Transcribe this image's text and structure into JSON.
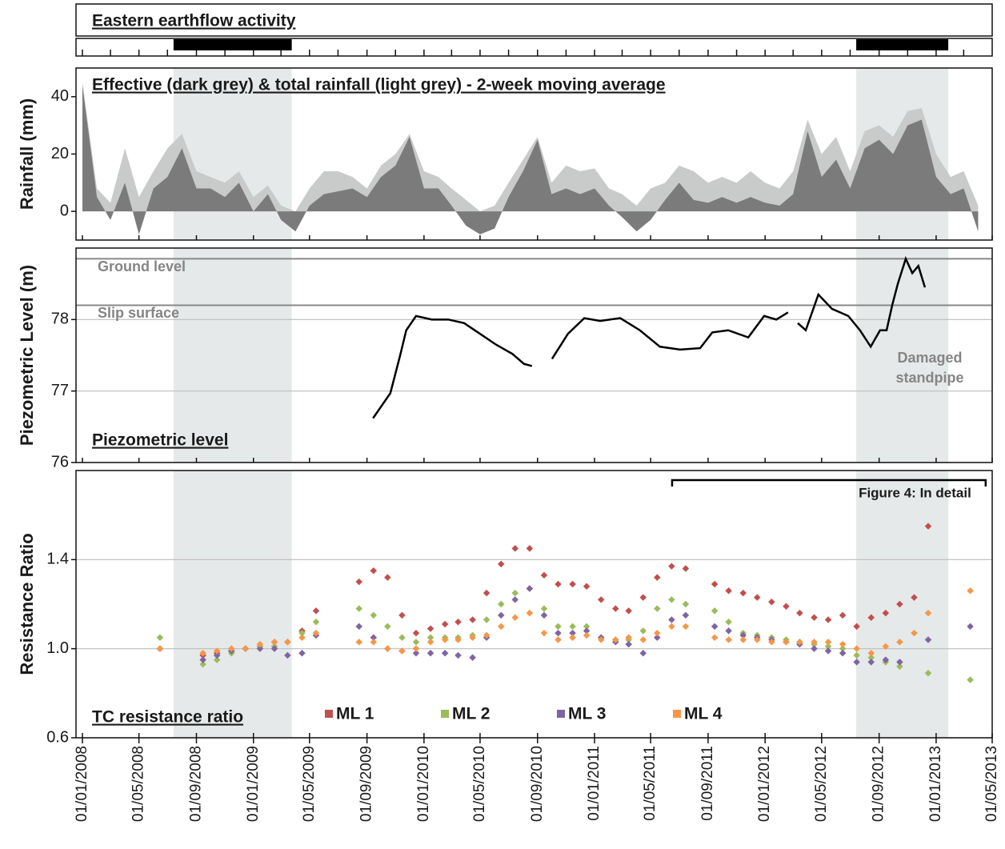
{
  "chart_data": [
    {
      "type": "timeline",
      "title": "Eastern earthflow activity",
      "periods": [
        {
          "start": "14/07/2008",
          "end": "24/03/2009"
        },
        {
          "start": "14/07/2012",
          "end": "27/01/2013"
        }
      ]
    },
    {
      "type": "area",
      "title": "Effective (dark grey) & total rainfall (light grey) - 2-week moving average",
      "y_label": "Rainfall (mm)",
      "ylim": [
        -10,
        50
      ],
      "yticks": [
        0,
        20,
        40
      ],
      "x": [
        "01/01/2008",
        "01/02/2008",
        "01/03/2008",
        "01/04/2008",
        "01/05/2008",
        "01/06/2008",
        "01/07/2008",
        "01/08/2008",
        "01/09/2008",
        "01/10/2008",
        "01/11/2008",
        "01/12/2008",
        "01/01/2009",
        "01/02/2009",
        "01/03/2009",
        "01/04/2009",
        "01/05/2009",
        "01/06/2009",
        "01/07/2009",
        "01/08/2009",
        "01/09/2009",
        "01/10/2009",
        "01/11/2009",
        "01/12/2009",
        "01/01/2010",
        "01/02/2010",
        "01/03/2010",
        "01/04/2010",
        "01/05/2010",
        "01/06/2010",
        "01/07/2010",
        "01/08/2010",
        "01/09/2010",
        "01/10/2010",
        "01/11/2010",
        "01/12/2010",
        "01/01/2011",
        "01/02/2011",
        "01/03/2011",
        "01/04/2011",
        "01/05/2011",
        "01/06/2011",
        "01/07/2011",
        "01/08/2011",
        "01/09/2011",
        "01/10/2011",
        "01/11/2011",
        "01/12/2011",
        "01/01/2012",
        "01/02/2012",
        "01/03/2012",
        "01/04/2012",
        "01/05/2012",
        "01/06/2012",
        "01/07/2012",
        "01/08/2012",
        "01/09/2012",
        "01/10/2012",
        "01/11/2012",
        "01/12/2012",
        "01/01/2013",
        "01/02/2013",
        "01/03/2013",
        "01/04/2013"
      ],
      "series": [
        {
          "name": "total rainfall",
          "color": "#c9caca",
          "values": [
            45,
            8,
            3,
            22,
            5,
            14,
            22,
            27,
            14,
            12,
            10,
            14,
            5,
            9,
            2,
            0,
            8,
            14,
            14,
            12,
            8,
            16,
            20,
            27,
            14,
            12,
            8,
            4,
            0,
            2,
            10,
            18,
            26,
            10,
            16,
            14,
            15,
            8,
            6,
            2,
            8,
            10,
            16,
            14,
            10,
            12,
            10,
            14,
            10,
            8,
            14,
            32,
            20,
            26,
            14,
            28,
            30,
            26,
            35,
            36,
            20,
            12,
            14,
            2
          ]
        },
        {
          "name": "effective rainfall",
          "color": "#7b7b7b",
          "values": [
            44,
            5,
            -3,
            10,
            -8,
            8,
            12,
            22,
            8,
            8,
            5,
            10,
            0,
            6,
            -3,
            -7,
            2,
            6,
            7,
            8,
            5,
            12,
            16,
            26,
            8,
            8,
            2,
            -5,
            -8,
            -6,
            5,
            14,
            25,
            6,
            8,
            6,
            8,
            2,
            -2,
            -7,
            -3,
            4,
            10,
            4,
            3,
            5,
            3,
            5,
            3,
            2,
            6,
            28,
            12,
            18,
            8,
            22,
            25,
            20,
            30,
            32,
            12,
            6,
            8,
            -7
          ]
        }
      ]
    },
    {
      "type": "line",
      "title": "Piezometric level",
      "y_label": "Piezometric Level (m)",
      "ylim": [
        76,
        79
      ],
      "yticks": [
        76,
        77,
        78
      ],
      "grid": true,
      "reference_lines": [
        {
          "label": "Ground level",
          "value": 78.85
        },
        {
          "label": "Slip surface",
          "value": 78.2
        }
      ],
      "annotation_lines": [
        "Damaged",
        "standpipe"
      ],
      "x": [
        "14/09/2009",
        "21/10/2009",
        "11/11/2009",
        "24/11/2009",
        "15/12/2009",
        "18/01/2010",
        "22/02/2010",
        "28/03/2010",
        "01/05/2010",
        "04/06/2010",
        "09/07/2010",
        "03/08/2010",
        "20/08/2010",
        null,
        "02/10/2010",
        "05/11/2010",
        "10/12/2010",
        "13/01/2011",
        "25/02/2011",
        "08/04/2011",
        "21/05/2011",
        "03/07/2011",
        "15/08/2011",
        "10/09/2011",
        "14/10/2011",
        "26/11/2011",
        "30/12/2011",
        "25/01/2012",
        "19/02/2012",
        null,
        "11/03/2012",
        "28/03/2012",
        "24/04/2012",
        "23/05/2012",
        "27/06/2012",
        "22/07/2012",
        "14/08/2012",
        "03/09/2012",
        "17/09/2012",
        "29/09/2012",
        "11/10/2012",
        "28/10/2012",
        "11/11/2012",
        "24/11/2012",
        "08/12/2012"
      ],
      "color": "#000000",
      "values": [
        76.62,
        76.97,
        77.5,
        77.85,
        78.05,
        78.0,
        78.0,
        77.95,
        77.8,
        77.65,
        77.52,
        77.38,
        77.35,
        null,
        77.45,
        77.8,
        78.02,
        77.98,
        78.02,
        77.85,
        77.62,
        77.58,
        77.6,
        77.82,
        77.85,
        77.75,
        78.05,
        78.0,
        78.1,
        null,
        77.95,
        77.85,
        78.35,
        78.15,
        78.05,
        77.85,
        77.62,
        77.85,
        77.85,
        78.2,
        78.5,
        78.85,
        78.65,
        78.75,
        78.45
      ]
    },
    {
      "type": "scatter",
      "title": "TC resistance ratio",
      "y_label": "Resistance Ratio",
      "ylim": [
        0.6,
        1.8
      ],
      "yticks": [
        {
          "value": 0.6,
          "label": "0.6"
        },
        {
          "value": 1.0,
          "label": "1.0"
        },
        {
          "value": 1.4,
          "label": "1.4"
        }
      ],
      "grid": true,
      "xlim": [
        "01/01/2008",
        "01/05/2013"
      ],
      "xticks": [
        "01/01/2008",
        "01/05/2008",
        "01/09/2008",
        "01/01/2009",
        "01/05/2009",
        "01/09/2009",
        "01/01/2010",
        "01/05/2010",
        "01/09/2010",
        "01/01/2011",
        "01/05/2011",
        "01/09/2011",
        "01/01/2012",
        "01/05/2012",
        "01/09/2012",
        "01/01/2013",
        "01/05/2013"
      ],
      "detail_range": {
        "label": "Figure 4: In detail",
        "start": "16/06/2011",
        "end": "17/04/2013"
      },
      "x": [
        "15/06/2008",
        "15/07/2008",
        "15/08/2008",
        "15/09/2008",
        "15/10/2008",
        "15/11/2008",
        "15/12/2008",
        "15/01/2009",
        "15/02/2009",
        "15/03/2009",
        "15/04/2009",
        "15/05/2009",
        "15/06/2009",
        "15/07/2009",
        "15/08/2009",
        "15/09/2009",
        "15/10/2009",
        "15/11/2009",
        "15/12/2009",
        "15/01/2010",
        "15/02/2010",
        "15/03/2010",
        "15/04/2010",
        "15/05/2010",
        "15/06/2010",
        "15/07/2010",
        "15/08/2010",
        "15/09/2010",
        "15/10/2010",
        "15/11/2010",
        "15/12/2010",
        "15/01/2011",
        "15/02/2011",
        "15/03/2011",
        "15/04/2011",
        "15/05/2011",
        "15/06/2011",
        "15/07/2011",
        "15/08/2011",
        "15/09/2011",
        "15/10/2011",
        "15/11/2011",
        "15/12/2011",
        "15/01/2012",
        "15/02/2012",
        "15/03/2012",
        "15/04/2012",
        "15/05/2012",
        "15/06/2012",
        "15/07/2012",
        "15/08/2012",
        "15/09/2012",
        "15/10/2012",
        "15/11/2012",
        "15/12/2012",
        "15/01/2013",
        "15/02/2013",
        "15/03/2013"
      ],
      "series": [
        {
          "name": "ML 1",
          "color": "#c0504d",
          "values": [
            1.0,
            null,
            null,
            0.97,
            0.98,
            0.99,
            1.0,
            1.01,
            1.03,
            1.03,
            1.08,
            1.17,
            null,
            null,
            1.3,
            1.35,
            1.32,
            1.15,
            1.07,
            1.09,
            1.11,
            1.12,
            1.13,
            1.25,
            1.38,
            1.45,
            1.45,
            1.33,
            1.29,
            1.29,
            1.28,
            1.22,
            1.18,
            1.17,
            1.23,
            1.32,
            1.37,
            1.36,
            null,
            1.29,
            1.26,
            1.25,
            1.23,
            1.21,
            1.19,
            1.16,
            1.14,
            1.13,
            1.15,
            1.1,
            1.14,
            1.16,
            1.2,
            1.23,
            1.55,
            null,
            null,
            null
          ]
        },
        {
          "name": "ML 2",
          "color": "#9bbb59",
          "values": [
            1.05,
            null,
            null,
            0.93,
            0.95,
            0.98,
            1.0,
            1.01,
            1.01,
            1.03,
            1.07,
            1.12,
            null,
            null,
            1.18,
            1.15,
            1.1,
            1.05,
            1.03,
            1.05,
            1.05,
            1.05,
            1.06,
            1.13,
            1.2,
            1.25,
            1.27,
            1.18,
            1.1,
            1.1,
            1.1,
            1.05,
            1.04,
            1.04,
            1.08,
            1.18,
            1.22,
            1.2,
            null,
            1.17,
            1.12,
            1.07,
            1.06,
            1.05,
            1.04,
            1.03,
            1.02,
            1.01,
            1.0,
            0.97,
            0.96,
            0.94,
            0.92,
            null,
            0.89,
            null,
            null,
            0.86
          ]
        },
        {
          "name": "ML 3",
          "color": "#8064a2",
          "values": [
            1.0,
            null,
            null,
            0.95,
            0.97,
            0.99,
            1.0,
            1.0,
            1.0,
            0.97,
            0.98,
            1.06,
            null,
            null,
            1.1,
            1.05,
            1.0,
            0.99,
            0.98,
            0.98,
            0.98,
            0.97,
            0.96,
            1.05,
            1.15,
            1.22,
            1.27,
            1.15,
            1.07,
            1.07,
            1.08,
            1.05,
            1.03,
            1.02,
            0.98,
            1.05,
            1.13,
            1.15,
            null,
            1.1,
            1.08,
            1.06,
            1.05,
            1.04,
            1.03,
            1.02,
            1.0,
            0.99,
            0.98,
            0.94,
            0.94,
            0.95,
            0.94,
            null,
            1.04,
            null,
            null,
            1.1
          ]
        },
        {
          "name": "ML 4",
          "color": "#f79646",
          "values": [
            1.0,
            null,
            null,
            0.98,
            0.99,
            1.0,
            1.0,
            1.02,
            1.03,
            1.03,
            1.05,
            1.07,
            null,
            null,
            1.03,
            1.03,
            1.0,
            0.99,
            1.0,
            1.03,
            1.04,
            1.04,
            1.05,
            1.06,
            1.1,
            1.14,
            1.16,
            1.07,
            1.04,
            1.05,
            1.06,
            1.04,
            1.04,
            1.05,
            1.04,
            1.07,
            1.1,
            1.1,
            null,
            1.05,
            1.04,
            1.04,
            1.04,
            1.03,
            1.03,
            1.03,
            1.03,
            1.03,
            1.02,
            1.0,
            0.98,
            1.01,
            1.03,
            1.07,
            1.16,
            null,
            null,
            1.26
          ]
        }
      ]
    }
  ]
}
